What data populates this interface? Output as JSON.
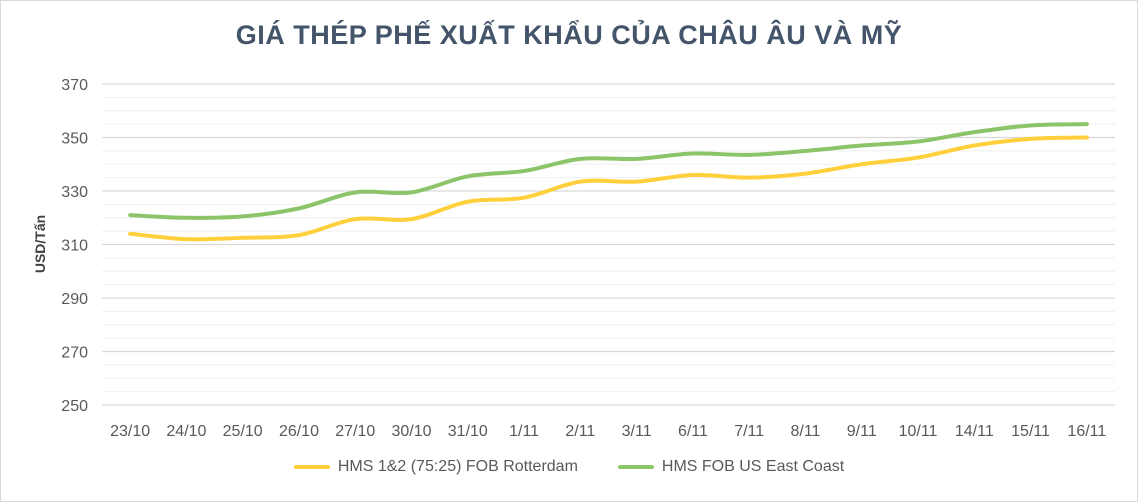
{
  "chart_data": {
    "type": "line",
    "title": "GIÁ THÉP PHẾ XUẤT KHẨU CỦA CHÂU ÂU VÀ MỸ",
    "ylabel": "USD/Tấn",
    "xlabel": "",
    "ylim": [
      250,
      370
    ],
    "yticks": [
      250,
      270,
      290,
      310,
      330,
      350,
      370
    ],
    "grid": true,
    "legend_position": "bottom",
    "categories": [
      "23/10",
      "24/10",
      "25/10",
      "26/10",
      "27/10",
      "30/10",
      "31/10",
      "1/11",
      "2/11",
      "3/11",
      "6/11",
      "7/11",
      "8/11",
      "9/11",
      "10/11",
      "14/11",
      "15/11",
      "16/11"
    ],
    "series": [
      {
        "name": "HMS 1&2 (75:25) FOB Rotterdam",
        "color": "#ffd03c",
        "values": [
          314,
          312,
          312.5,
          313.5,
          319.5,
          319.5,
          326,
          327.5,
          333.5,
          333.5,
          336,
          335,
          336.5,
          340,
          342.5,
          347,
          349.5,
          350
        ]
      },
      {
        "name": "HMS FOB US East Coast",
        "color": "#8cc46a",
        "values": [
          321,
          320,
          320.5,
          323.5,
          329.5,
          329.5,
          335.5,
          337.5,
          342,
          342,
          344,
          343.5,
          345,
          347,
          348.5,
          352,
          354.5,
          355
        ]
      }
    ]
  }
}
